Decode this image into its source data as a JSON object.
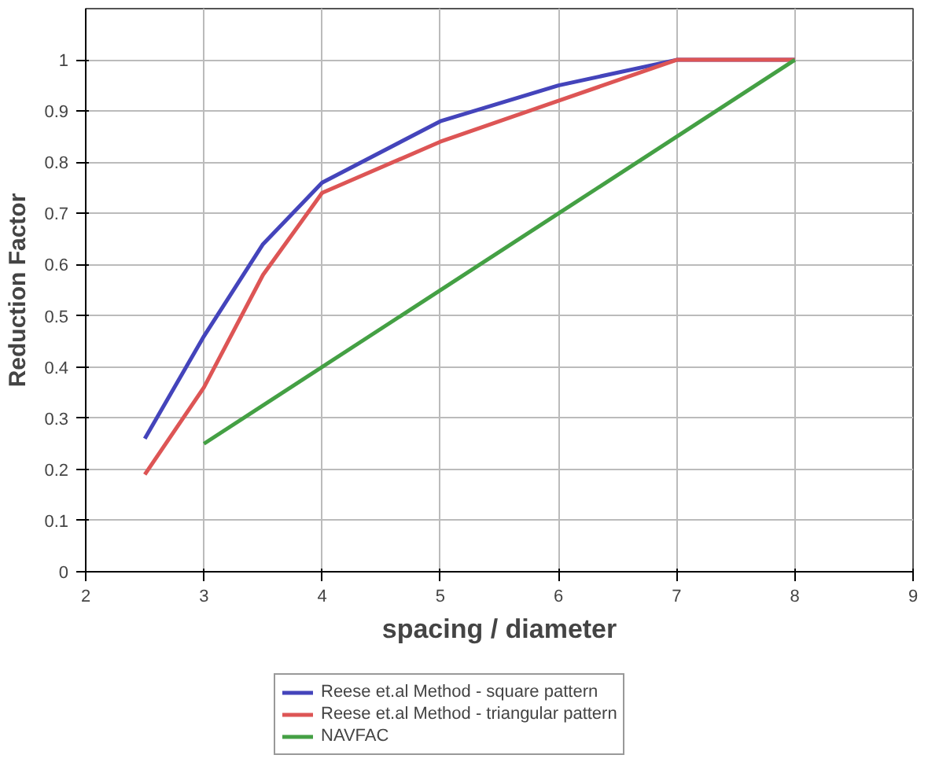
{
  "chart_data": {
    "type": "line",
    "xlabel": "spacing / diameter",
    "ylabel": "Reduction Factor",
    "xlim": [
      2,
      9
    ],
    "xticks": [
      2,
      3,
      4,
      5,
      6,
      7,
      8,
      9
    ],
    "ylim": [
      0,
      1.1
    ],
    "yticks": [
      0,
      0.1,
      0.2,
      0.3,
      0.4,
      0.5,
      0.6,
      0.7,
      0.8,
      0.9,
      1
    ],
    "grid": true,
    "legend": "bottom",
    "marker": "none",
    "line_style": "solid",
    "series": [
      {
        "name": "Reese et.al Method - square pattern",
        "color": "#4444bb",
        "x": [
          2.5,
          3,
          3.5,
          4,
          5,
          6,
          7,
          8
        ],
        "values": [
          0.26,
          0.46,
          0.64,
          0.76,
          0.88,
          0.95,
          1.0,
          1.0
        ]
      },
      {
        "name": "Reese et.al Method - triangular pattern",
        "color": "#dd5555",
        "x": [
          2.5,
          3,
          3.5,
          4,
          5,
          6,
          7,
          8
        ],
        "values": [
          0.19,
          0.36,
          0.58,
          0.74,
          0.84,
          0.92,
          1.0,
          1.0
        ]
      },
      {
        "name": "NAVFAC",
        "color": "#44a044",
        "x": [
          3,
          8
        ],
        "values": [
          0.25,
          1.0
        ]
      }
    ]
  }
}
